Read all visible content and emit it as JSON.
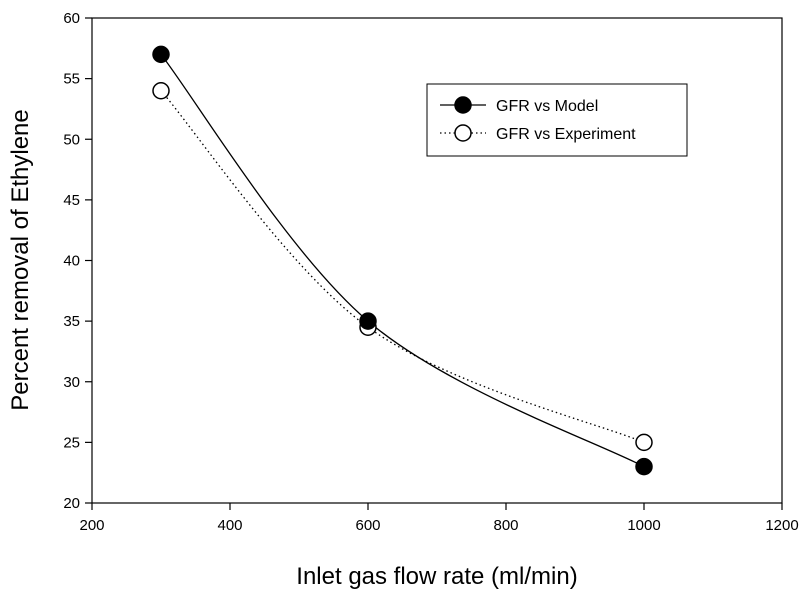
{
  "chart_data": {
    "type": "line",
    "xlabel": "Inlet gas flow rate (ml/min)",
    "ylabel": "Percent removal of Ethylene",
    "xlim": [
      200,
      1200
    ],
    "ylim": [
      20,
      60
    ],
    "xticks": [
      200,
      400,
      600,
      800,
      1000,
      1200
    ],
    "yticks": [
      20,
      25,
      30,
      35,
      40,
      45,
      50,
      55,
      60
    ],
    "grid": false,
    "legend_position": "top-right",
    "series": [
      {
        "name": "GFR vs Model",
        "x": [
          300,
          600,
          1000
        ],
        "y": [
          57,
          35,
          23
        ],
        "line_style": "solid",
        "marker": "filled-circle",
        "color": "#000000"
      },
      {
        "name": "GFR vs Experiment",
        "x": [
          300,
          600,
          1000
        ],
        "y": [
          54,
          34.5,
          25
        ],
        "line_style": "dotted",
        "marker": "open-circle",
        "color": "#000000"
      }
    ]
  }
}
